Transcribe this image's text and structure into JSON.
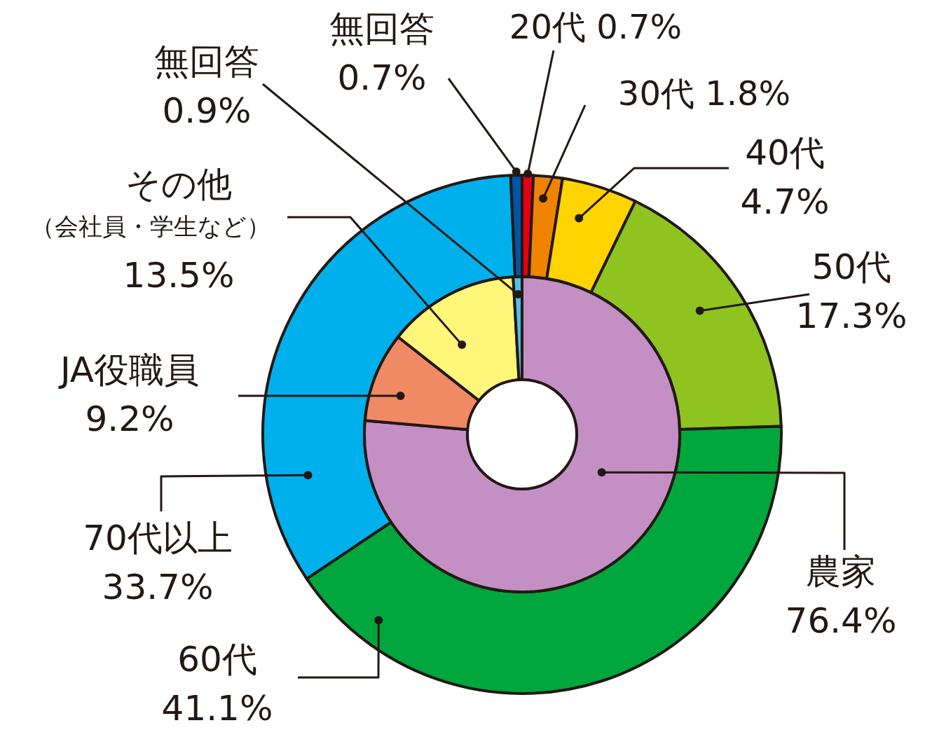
{
  "chart_data": [
    {
      "type": "donut",
      "categories": [
        "20代",
        "30代",
        "40代",
        "50代",
        "60代",
        "70代以上",
        "無回答"
      ],
      "values": [
        0.7,
        1.8,
        4.7,
        17.3,
        41.1,
        33.7,
        0.7
      ],
      "colors": [
        "#e60012",
        "#f08300",
        "#ffd400",
        "#8fc31f",
        "#00a73c",
        "#00b0ec",
        "#0054a6"
      ],
      "value_labels": [
        "0.7%",
        "1.8%",
        "4.7%",
        "17.3%",
        "41.1%",
        "33.7%",
        "0.7%"
      ]
    },
    {
      "type": "donut",
      "categories": [
        "農家",
        "JA役職員",
        "その他（会社員・学生など）",
        "無回答"
      ],
      "values": [
        76.4,
        9.2,
        13.5,
        0.9
      ],
      "colors": [
        "#c490c4",
        "#f08a64",
        "#fff67a",
        "#4fc1e9"
      ],
      "value_labels": [
        "76.4%",
        "9.2%",
        "13.5%",
        "0.9%"
      ]
    }
  ]
}
